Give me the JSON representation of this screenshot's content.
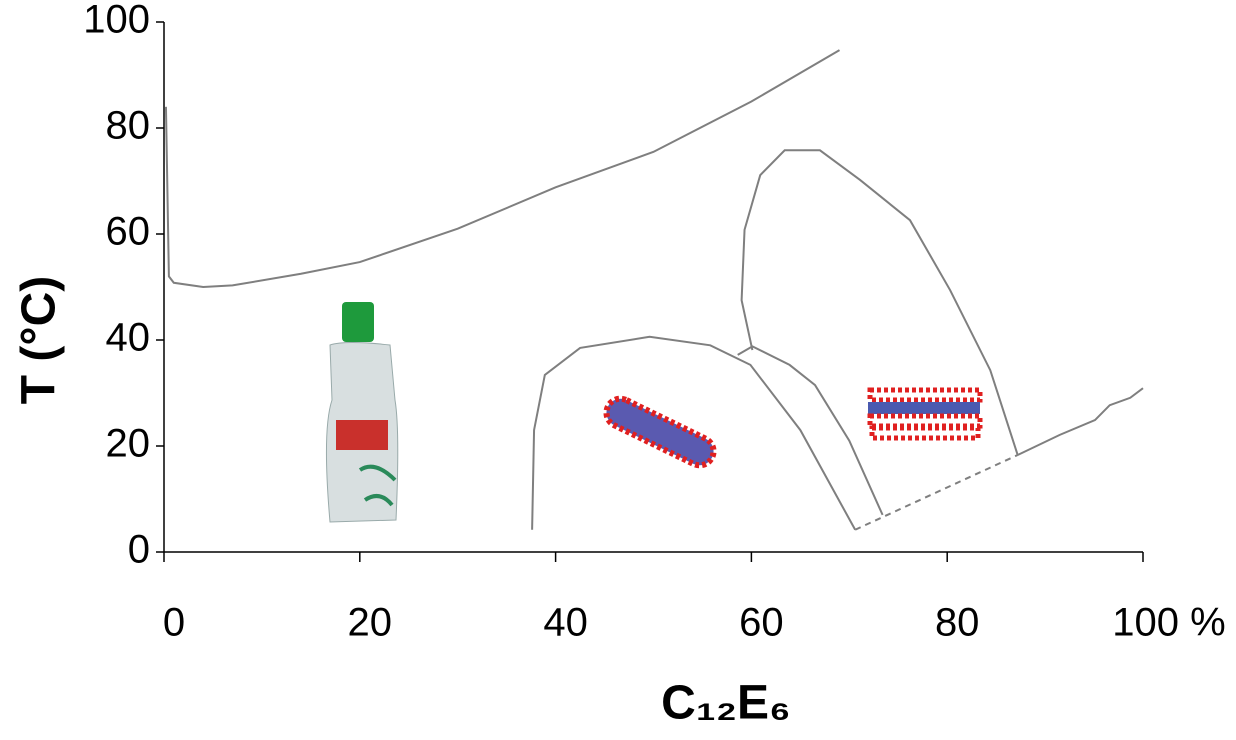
{
  "chart_data": {
    "type": "line",
    "xlabel": "C₁₂E₆",
    "ylabel": "T (°C)",
    "xlim": [
      0,
      100
    ],
    "ylim": [
      0,
      100
    ],
    "xticks": [
      0,
      20,
      40,
      60,
      80,
      {
        "value": 100,
        "label": "100 %"
      }
    ],
    "yticks": [
      0,
      20,
      40,
      60,
      80,
      100
    ],
    "series": [
      {
        "color": "#7f7f7f",
        "style": "solid",
        "x": [
          0.2,
          0.5,
          1,
          4,
          7,
          14,
          20,
          30,
          40,
          50,
          60,
          69
        ],
        "values": [
          84,
          52,
          50.8,
          50,
          50.3,
          52.5,
          54.7,
          61,
          68.8,
          75.5,
          85,
          94.7
        ]
      },
      {
        "color": "#7f7f7f",
        "style": "solid",
        "x": [
          37.6,
          37.8,
          38.9,
          42.5,
          49.6,
          55.8,
          59.9,
          65,
          70.6
        ],
        "values": [
          4.2,
          23,
          33.4,
          38.5,
          40.6,
          39,
          35.3,
          23,
          4.2
        ]
      },
      {
        "color": "#7f7f7f",
        "style": "solid",
        "x": [
          58.6,
          60.1,
          63.9,
          66.5,
          70,
          73.4
        ],
        "values": [
          37.2,
          38.8,
          35.3,
          31.5,
          21,
          7
        ]
      },
      {
        "color": "#7f7f7f",
        "style": "solid",
        "x": [
          60.1,
          59,
          59.3,
          60.9,
          63.4,
          67,
          71.1,
          76.2,
          80.3,
          84.4,
          87.2
        ],
        "values": [
          38.1,
          47.5,
          60.8,
          71.1,
          75.8,
          75.8,
          70.2,
          62.6,
          49.4,
          34.3,
          18.3
        ]
      },
      {
        "color": "#7f7f7f",
        "style": "solid",
        "x": [
          87.2,
          91.5,
          95.1,
          96.6,
          98.7,
          100
        ],
        "values": [
          18.3,
          22.1,
          24.9,
          27.7,
          29.1,
          30.9
        ]
      },
      {
        "color": "#7f7f7f",
        "style": "dashed",
        "x": [
          70.6,
          87.2
        ],
        "values": [
          4.2,
          18.3
        ]
      }
    ]
  }
}
